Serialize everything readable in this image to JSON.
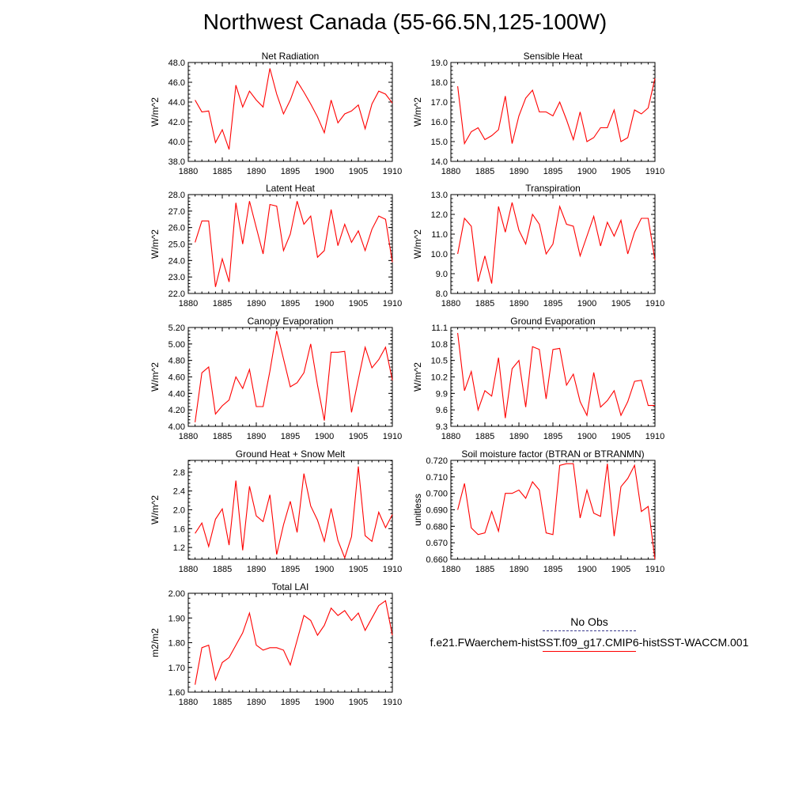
{
  "page_title": "Northwest Canada (55-66.5N,125-100W)",
  "line_color": "#ff0000",
  "legend": [
    {
      "label": "No Obs",
      "color": "#3b3b8f",
      "style": "dashed"
    },
    {
      "label": "f.e21.FWaerchem-histSST.f09_g17.CMIP6-histSST-WACCM.001",
      "color": "#ff0000",
      "style": "solid"
    }
  ],
  "chart_data": [
    {
      "type": "line",
      "title": "Net Radiation",
      "ylabel": "W/m^2",
      "xlim": [
        1880,
        1910
      ],
      "xticks": [
        1880,
        1885,
        1890,
        1895,
        1900,
        1905,
        1910
      ],
      "ylim": [
        38.0,
        48.0
      ],
      "yticks": [
        "38.0",
        "40.0",
        "42.0",
        "44.0",
        "46.0",
        "48.0"
      ],
      "x": [
        1881,
        1882,
        1883,
        1884,
        1885,
        1886,
        1887,
        1888,
        1889,
        1890,
        1891,
        1892,
        1893,
        1894,
        1895,
        1896,
        1897,
        1898,
        1899,
        1900,
        1901,
        1902,
        1903,
        1904,
        1905,
        1906,
        1907,
        1908,
        1909,
        1910
      ],
      "series": [
        {
          "values": [
            44.2,
            43.0,
            43.1,
            39.9,
            41.2,
            39.2,
            45.7,
            43.5,
            45.1,
            44.2,
            43.5,
            47.4,
            44.8,
            42.8,
            44.2,
            46.1,
            45.0,
            43.8,
            42.5,
            40.9,
            44.2,
            41.9,
            42.8,
            43.1,
            43.7,
            41.3,
            43.8,
            45.1,
            44.8,
            43.9
          ]
        }
      ]
    },
    {
      "type": "line",
      "title": "Sensible Heat",
      "ylabel": "W/m^2",
      "xlim": [
        1880,
        1910
      ],
      "xticks": [
        1880,
        1885,
        1890,
        1895,
        1900,
        1905,
        1910
      ],
      "ylim": [
        14.0,
        19.0
      ],
      "yticks": [
        "14.0",
        "15.0",
        "16.0",
        "17.0",
        "18.0",
        "19.0"
      ],
      "x": [
        1881,
        1882,
        1883,
        1884,
        1885,
        1886,
        1887,
        1888,
        1889,
        1890,
        1891,
        1892,
        1893,
        1894,
        1895,
        1896,
        1897,
        1898,
        1899,
        1900,
        1901,
        1902,
        1903,
        1904,
        1905,
        1906,
        1907,
        1908,
        1909,
        1910
      ],
      "series": [
        {
          "values": [
            17.8,
            14.9,
            15.5,
            15.7,
            15.1,
            15.3,
            15.6,
            17.3,
            14.9,
            16.3,
            17.2,
            17.6,
            16.5,
            16.5,
            16.3,
            17.0,
            16.1,
            15.1,
            16.5,
            15.0,
            15.2,
            15.7,
            15.7,
            16.6,
            15.0,
            15.2,
            16.6,
            16.4,
            16.7,
            18.2
          ]
        }
      ]
    },
    {
      "type": "line",
      "title": "Latent Heat",
      "ylabel": "W/m^2",
      "xlim": [
        1880,
        1910
      ],
      "xticks": [
        1880,
        1885,
        1890,
        1895,
        1900,
        1905,
        1910
      ],
      "ylim": [
        22.0,
        28.0
      ],
      "yticks": [
        "22.0",
        "23.0",
        "24.0",
        "25.0",
        "26.0",
        "27.0",
        "28.0"
      ],
      "x": [
        1881,
        1882,
        1883,
        1884,
        1885,
        1886,
        1887,
        1888,
        1889,
        1890,
        1891,
        1892,
        1893,
        1894,
        1895,
        1896,
        1897,
        1898,
        1899,
        1900,
        1901,
        1902,
        1903,
        1904,
        1905,
        1906,
        1907,
        1908,
        1909,
        1910
      ],
      "series": [
        {
          "values": [
            25.1,
            26.4,
            26.4,
            22.4,
            24.1,
            22.7,
            27.5,
            25.0,
            27.6,
            26.0,
            24.4,
            27.4,
            27.3,
            24.6,
            25.6,
            27.6,
            26.2,
            26.7,
            24.2,
            24.6,
            27.1,
            24.9,
            26.2,
            25.1,
            25.8,
            24.6,
            25.9,
            26.7,
            26.5,
            23.9
          ]
        }
      ]
    },
    {
      "type": "line",
      "title": "Transpiration",
      "ylabel": "W/m^2",
      "xlim": [
        1880,
        1910
      ],
      "xticks": [
        1880,
        1885,
        1890,
        1895,
        1900,
        1905,
        1910
      ],
      "ylim": [
        8.0,
        13.0
      ],
      "yticks": [
        "8.0",
        "9.0",
        "10.0",
        "11.0",
        "12.0",
        "13.0"
      ],
      "x": [
        1881,
        1882,
        1883,
        1884,
        1885,
        1886,
        1887,
        1888,
        1889,
        1890,
        1891,
        1892,
        1893,
        1894,
        1895,
        1896,
        1897,
        1898,
        1899,
        1900,
        1901,
        1902,
        1903,
        1904,
        1905,
        1906,
        1907,
        1908,
        1909,
        1910
      ],
      "series": [
        {
          "values": [
            10.0,
            11.8,
            11.4,
            8.6,
            9.9,
            8.5,
            12.4,
            11.1,
            12.6,
            11.2,
            10.5,
            12.0,
            11.5,
            10.0,
            10.5,
            12.4,
            11.5,
            11.4,
            9.9,
            10.9,
            11.9,
            10.4,
            11.6,
            10.9,
            11.7,
            10.0,
            11.1,
            11.8,
            11.8,
            9.7
          ]
        }
      ]
    },
    {
      "type": "line",
      "title": "Canopy Evaporation",
      "ylabel": "W/m^2",
      "xlim": [
        1880,
        1910
      ],
      "xticks": [
        1880,
        1885,
        1890,
        1895,
        1900,
        1905,
        1910
      ],
      "ylim": [
        4.0,
        5.2
      ],
      "yticks": [
        "4.00",
        "4.20",
        "4.40",
        "4.60",
        "4.80",
        "5.00",
        "5.20"
      ],
      "x": [
        1881,
        1882,
        1883,
        1884,
        1885,
        1886,
        1887,
        1888,
        1889,
        1890,
        1891,
        1892,
        1893,
        1894,
        1895,
        1896,
        1897,
        1898,
        1899,
        1900,
        1901,
        1902,
        1903,
        1904,
        1905,
        1906,
        1907,
        1908,
        1909,
        1910
      ],
      "series": [
        {
          "values": [
            4.05,
            4.65,
            4.72,
            4.15,
            4.25,
            4.32,
            4.6,
            4.46,
            4.69,
            4.24,
            4.24,
            4.67,
            5.16,
            4.82,
            4.48,
            4.53,
            4.65,
            5.0,
            4.5,
            4.07,
            4.9,
            4.9,
            4.91,
            4.17,
            4.57,
            4.96,
            4.71,
            4.81,
            4.96,
            4.56
          ]
        }
      ]
    },
    {
      "type": "line",
      "title": "Ground Evaporation",
      "ylabel": "W/m^2",
      "xlim": [
        1880,
        1910
      ],
      "xticks": [
        1880,
        1885,
        1890,
        1895,
        1900,
        1905,
        1910
      ],
      "ylim": [
        9.3,
        11.1
      ],
      "yticks": [
        "9.3",
        "9.6",
        "9.9",
        "10.2",
        "10.5",
        "10.8",
        "11.1"
      ],
      "x": [
        1881,
        1882,
        1883,
        1884,
        1885,
        1886,
        1887,
        1888,
        1889,
        1890,
        1891,
        1892,
        1893,
        1894,
        1895,
        1896,
        1897,
        1898,
        1899,
        1900,
        1901,
        1902,
        1903,
        1904,
        1905,
        1906,
        1907,
        1908,
        1909,
        1910
      ],
      "series": [
        {
          "values": [
            11.0,
            9.95,
            10.3,
            9.6,
            9.95,
            9.85,
            10.55,
            9.45,
            10.35,
            10.5,
            9.65,
            10.75,
            10.7,
            9.8,
            10.7,
            10.72,
            10.05,
            10.25,
            9.75,
            9.5,
            10.28,
            9.65,
            9.77,
            9.95,
            9.5,
            9.75,
            10.12,
            10.14,
            9.68,
            9.68
          ]
        }
      ]
    },
    {
      "type": "line",
      "title": "Ground Heat + Snow Melt",
      "ylabel": "W/m^2",
      "xlim": [
        1880,
        1910
      ],
      "xticks": [
        1880,
        1885,
        1890,
        1895,
        1900,
        1905,
        1910
      ],
      "ylim": [
        0.95,
        3.05
      ],
      "yticks": [
        "1.2",
        "1.6",
        "2.0",
        "2.4",
        "2.8"
      ],
      "ytick_values": [
        1.2,
        1.6,
        2.0,
        2.4,
        2.8
      ],
      "x": [
        1881,
        1882,
        1883,
        1884,
        1885,
        1886,
        1887,
        1888,
        1889,
        1890,
        1891,
        1892,
        1893,
        1894,
        1895,
        1896,
        1897,
        1898,
        1899,
        1900,
        1901,
        1902,
        1903,
        1904,
        1905,
        1906,
        1907,
        1908,
        1909,
        1910
      ],
      "series": [
        {
          "values": [
            1.5,
            1.72,
            1.22,
            1.8,
            2.02,
            1.25,
            2.62,
            1.14,
            2.5,
            1.87,
            1.75,
            2.32,
            1.05,
            1.68,
            2.18,
            1.52,
            2.77,
            2.08,
            1.78,
            1.33,
            2.03,
            1.35,
            0.98,
            1.43,
            2.92,
            1.45,
            1.33,
            1.95,
            1.62,
            1.9
          ]
        }
      ]
    },
    {
      "type": "line",
      "title": "Soil moisture factor (BTRAN or BTRANMN)",
      "ylabel": "unitless",
      "xlim": [
        1880,
        1910
      ],
      "xticks": [
        1880,
        1885,
        1890,
        1895,
        1900,
        1905,
        1910
      ],
      "ylim": [
        0.66,
        0.72
      ],
      "yticks": [
        "0.660",
        "0.670",
        "0.680",
        "0.690",
        "0.700",
        "0.710",
        "0.720"
      ],
      "x": [
        1881,
        1882,
        1883,
        1884,
        1885,
        1886,
        1887,
        1888,
        1889,
        1890,
        1891,
        1892,
        1893,
        1894,
        1895,
        1896,
        1897,
        1898,
        1899,
        1900,
        1901,
        1902,
        1903,
        1904,
        1905,
        1906,
        1907,
        1908,
        1909,
        1910
      ],
      "series": [
        {
          "values": [
            0.69,
            0.706,
            0.679,
            0.675,
            0.676,
            0.689,
            0.677,
            0.7,
            0.7,
            0.702,
            0.697,
            0.707,
            0.702,
            0.676,
            0.675,
            0.717,
            0.718,
            0.718,
            0.685,
            0.702,
            0.688,
            0.686,
            0.718,
            0.674,
            0.704,
            0.709,
            0.717,
            0.689,
            0.692,
            0.66
          ]
        }
      ]
    },
    {
      "type": "line",
      "title": "Total LAI",
      "ylabel": "m2/m2",
      "xlim": [
        1880,
        1910
      ],
      "xticks": [
        1880,
        1885,
        1890,
        1895,
        1900,
        1905,
        1910
      ],
      "ylim": [
        1.6,
        2.0
      ],
      "yticks": [
        "1.60",
        "1.70",
        "1.80",
        "1.90",
        "2.00"
      ],
      "x": [
        1881,
        1882,
        1883,
        1884,
        1885,
        1886,
        1887,
        1888,
        1889,
        1890,
        1891,
        1892,
        1893,
        1894,
        1895,
        1896,
        1897,
        1898,
        1899,
        1900,
        1901,
        1902,
        1903,
        1904,
        1905,
        1906,
        1907,
        1908,
        1909,
        1910
      ],
      "series": [
        {
          "values": [
            1.63,
            1.78,
            1.79,
            1.65,
            1.72,
            1.74,
            1.79,
            1.84,
            1.92,
            1.79,
            1.77,
            1.78,
            1.78,
            1.77,
            1.71,
            1.81,
            1.91,
            1.89,
            1.83,
            1.87,
            1.94,
            1.91,
            1.93,
            1.89,
            1.92,
            1.85,
            1.9,
            1.95,
            1.97,
            1.83
          ]
        }
      ]
    }
  ]
}
